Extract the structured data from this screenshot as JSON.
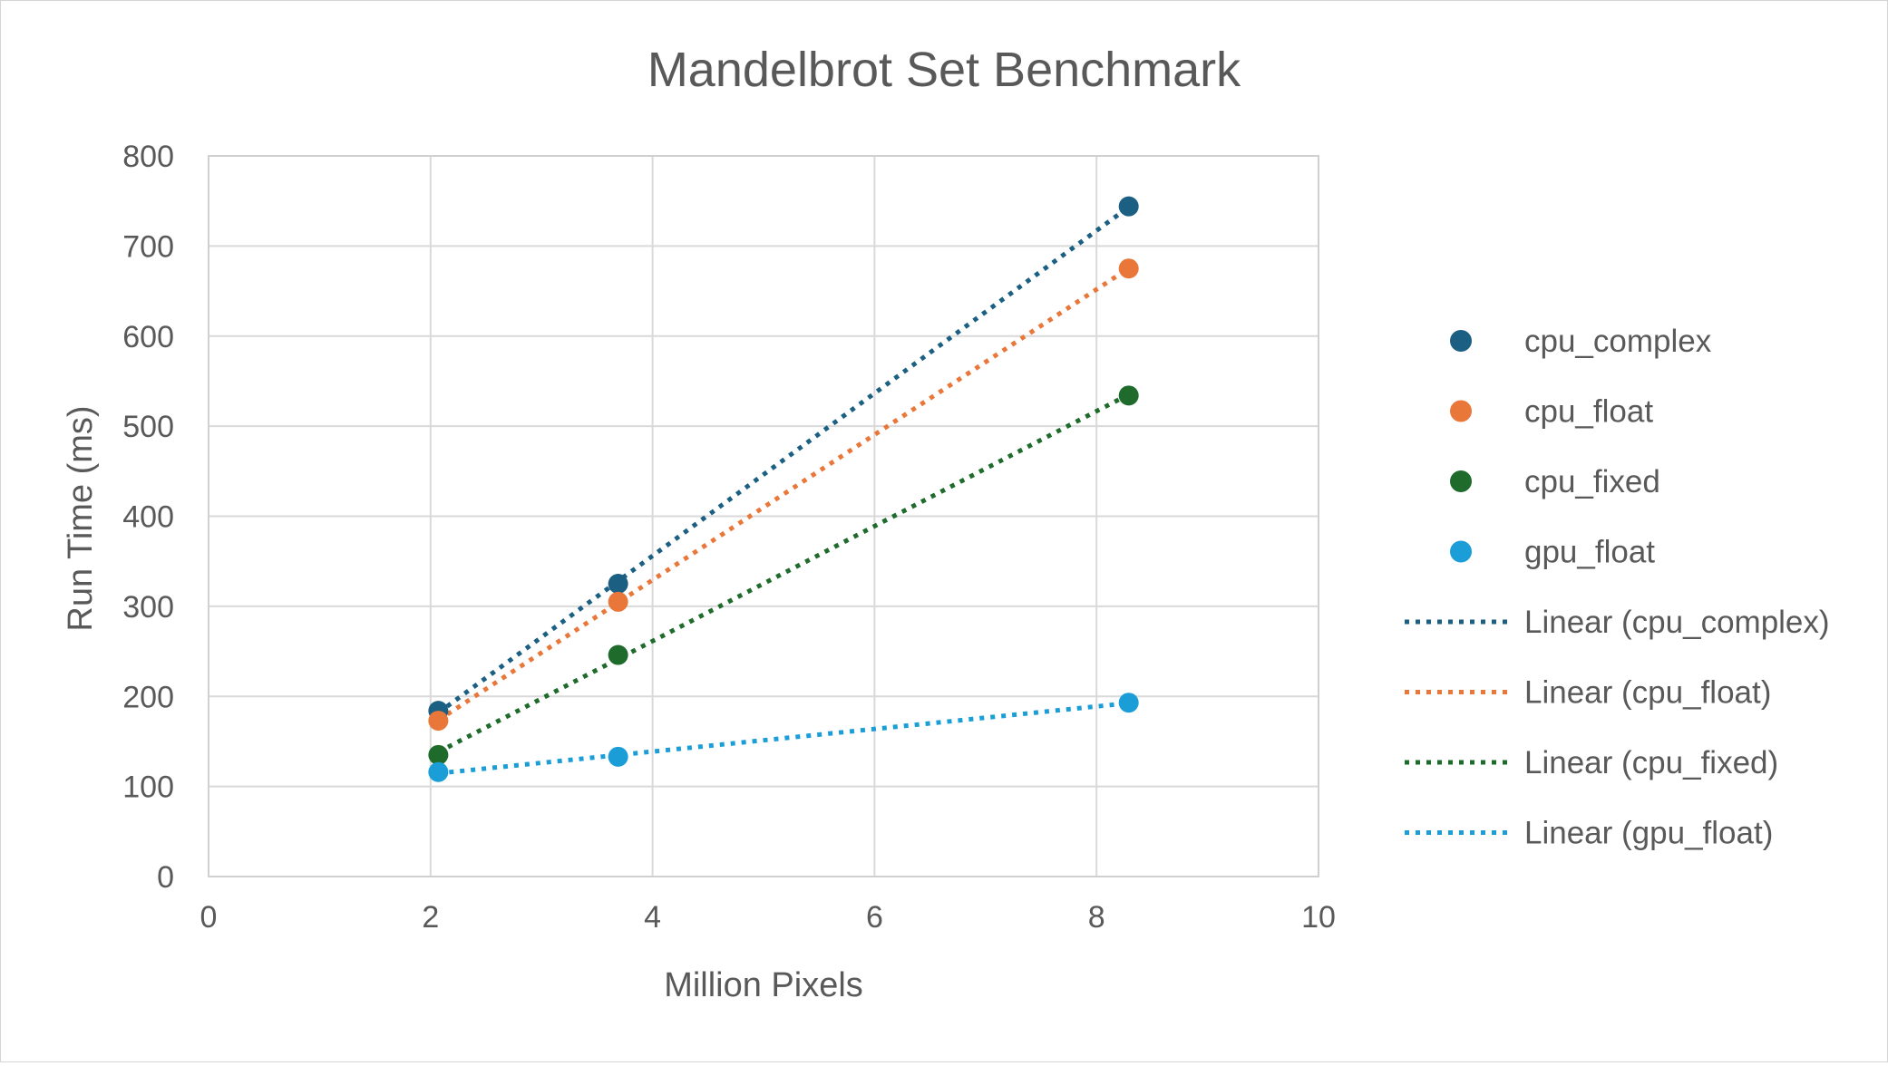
{
  "chart_data": {
    "type": "scatter",
    "title": "Mandelbrot Set Benchmark",
    "xlabel": "Million Pixels",
    "ylabel": "Run Time (ms)",
    "xlim": [
      0,
      10
    ],
    "ylim": [
      0,
      800
    ],
    "xticks": [
      0,
      2,
      4,
      6,
      8,
      10
    ],
    "yticks": [
      0,
      100,
      200,
      300,
      400,
      500,
      600,
      700,
      800
    ],
    "grid": true,
    "legend_position": "right",
    "series": [
      {
        "name": "cpu_complex",
        "color": "#1b5f82",
        "x": [
          2.07,
          3.69,
          8.29
        ],
        "y": [
          184,
          325,
          744
        ]
      },
      {
        "name": "cpu_float",
        "color": "#e9773a",
        "x": [
          2.07,
          3.69,
          8.29
        ],
        "y": [
          173,
          305,
          675
        ]
      },
      {
        "name": "cpu_fixed",
        "color": "#1e6b2c",
        "x": [
          2.07,
          3.69,
          8.29
        ],
        "y": [
          135,
          246,
          534
        ]
      },
      {
        "name": "gpu_float",
        "color": "#1b9ed7",
        "x": [
          2.07,
          3.69,
          8.29
        ],
        "y": [
          116,
          133,
          193
        ]
      }
    ],
    "trendlines": [
      {
        "name": "Linear (cpu_complex)",
        "series": "cpu_complex",
        "color": "#1b5f82",
        "style": "dotted"
      },
      {
        "name": "Linear (cpu_float)",
        "series": "cpu_float",
        "color": "#e9773a",
        "style": "dotted"
      },
      {
        "name": "Linear (cpu_fixed)",
        "series": "cpu_fixed",
        "color": "#1e6b2c",
        "style": "dotted"
      },
      {
        "name": "Linear (gpu_float)",
        "series": "gpu_float",
        "color": "#1b9ed7",
        "style": "dotted"
      }
    ]
  }
}
